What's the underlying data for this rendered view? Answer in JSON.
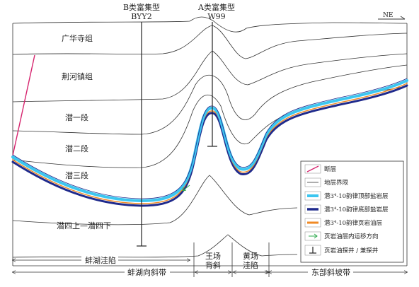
{
  "wells": {
    "b": {
      "type": "B类富集型",
      "name": "BYY2"
    },
    "a": {
      "type": "A类富集型",
      "name": "W99"
    }
  },
  "north": "NE",
  "formations": {
    "f1": "广华寺组",
    "f2": "荆河镇组",
    "f3": "潜一段",
    "f4": "潜二段",
    "f5": "潜三段",
    "f6": "潜四上—潜四下"
  },
  "structures": {
    "depression_left": "蚌湖洼陷",
    "anticline_l1": "王场",
    "anticline_l2": "背斜",
    "depression_r_l1": "黄场",
    "depression_r_l2": "洼陷",
    "slope_zone": "蚌湖向斜带",
    "east_slope": "东部斜坡带"
  },
  "legend": [
    {
      "key": "fault",
      "label": "断层"
    },
    {
      "key": "boundary",
      "label": "地层界限"
    },
    {
      "key": "top_salt",
      "label": "潜3⁴-10韵律顶部盐岩层"
    },
    {
      "key": "bottom_salt",
      "label": "潜3⁴-10韵律底部盐岩层"
    },
    {
      "key": "shale_oil",
      "label": "潜3⁴-10韵律页岩油层"
    },
    {
      "key": "migration",
      "label": "页岩油层内运移方向"
    },
    {
      "key": "well",
      "label": "页岩油探井 / 兼探井"
    }
  ],
  "colors": {
    "fault": "#d6246e",
    "top_salt": "#3cc6f0",
    "bottom_salt": "#1f2a8c",
    "shale_oil": "#f08a24",
    "migration": "#2aa84a",
    "line": "#333333"
  }
}
